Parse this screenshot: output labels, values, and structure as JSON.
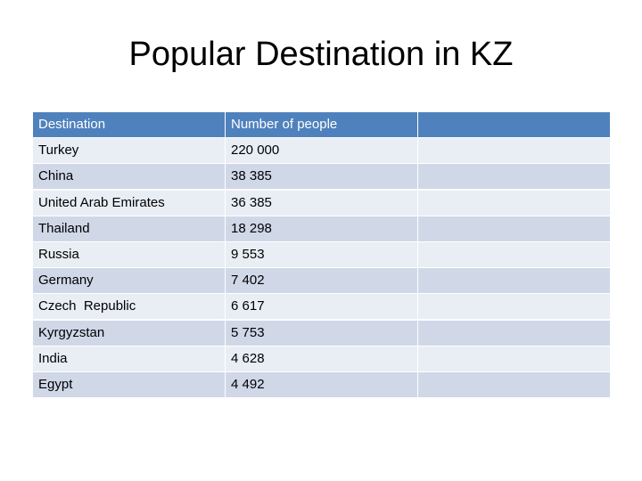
{
  "title": "Popular Destination in KZ",
  "table": {
    "header": [
      "Destination",
      "Number of people"
    ],
    "rows": [
      [
        "Turkey",
        "220 000"
      ],
      [
        "China",
        "38 385"
      ],
      [
        "United Arab Emirates",
        "36 385"
      ],
      [
        "Thailand",
        "18 298"
      ],
      [
        "Russia",
        "9 553"
      ],
      [
        "Germany",
        "7 402"
      ],
      [
        "Czech  Republic",
        "6 617"
      ],
      [
        "Kyrgyzstan",
        "5 753"
      ],
      [
        "India",
        "4 628"
      ],
      [
        "Egypt",
        "4 492"
      ]
    ]
  }
}
